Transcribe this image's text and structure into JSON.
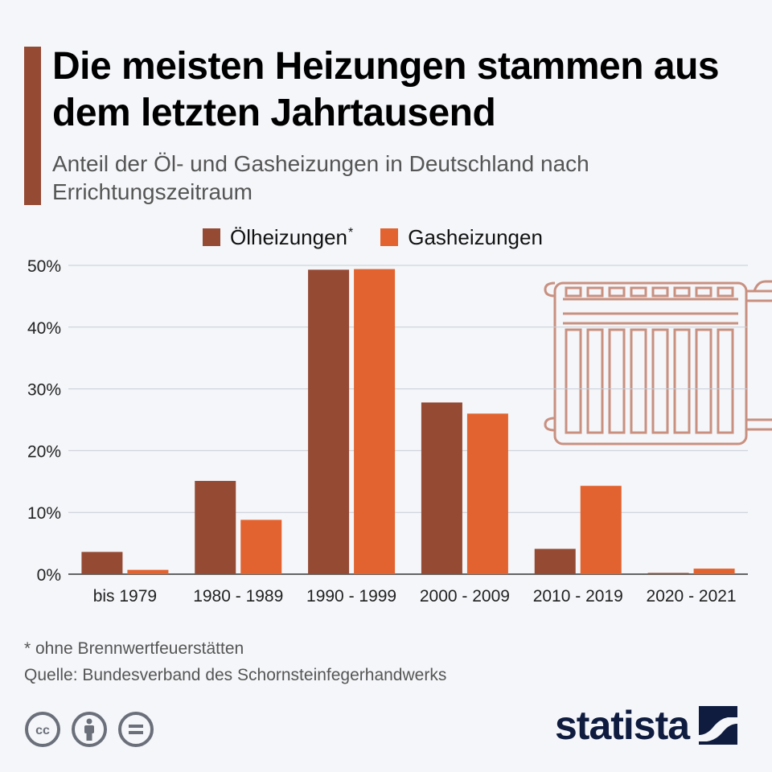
{
  "title": "Die meisten Heizungen stammen aus dem letzten Jahrtausend",
  "subtitle": "Anteil der Öl- und Gasheizungen in Deutschland nach Errichtungszeitraum",
  "legend": {
    "oil_label": "Ölheizungen",
    "oil_marker": "*",
    "gas_label": "Gasheizungen"
  },
  "footnote": "* ohne Brennwertfeuerstätten",
  "source": "Quelle: Bundesverband des Schornsteinfegerhandwerks",
  "brand": "statista",
  "license_icons": [
    "cc-icon",
    "attribution-icon",
    "no-derivatives-icon"
  ],
  "colors": {
    "oil": "#954a34",
    "gas": "#e2632f",
    "accent": "#954a34",
    "radiator": "#c99080",
    "grid": "#c8ccd6"
  },
  "chart_data": {
    "type": "bar",
    "title": "Die meisten Heizungen stammen aus dem letzten Jahrtausend",
    "subtitle": "Anteil der Öl- und Gasheizungen in Deutschland nach Errichtungszeitraum",
    "categories": [
      "bis 1979",
      "1980 - 1989",
      "1990 - 1999",
      "2000 - 2009",
      "2010 - 2019",
      "2020 - 2021"
    ],
    "series": [
      {
        "name": "Ölheizungen*",
        "values": [
          3.6,
          15.1,
          49.3,
          27.8,
          4.1,
          0.2
        ]
      },
      {
        "name": "Gasheizungen",
        "values": [
          0.7,
          8.8,
          49.4,
          26.0,
          14.3,
          0.9
        ]
      }
    ],
    "ylim": [
      0,
      50
    ],
    "yticks": [
      "0%",
      "10%",
      "20%",
      "30%",
      "40%",
      "50%"
    ],
    "ytick_values": [
      0,
      10,
      20,
      30,
      40,
      50
    ],
    "grid": true,
    "legend_position": "top"
  }
}
